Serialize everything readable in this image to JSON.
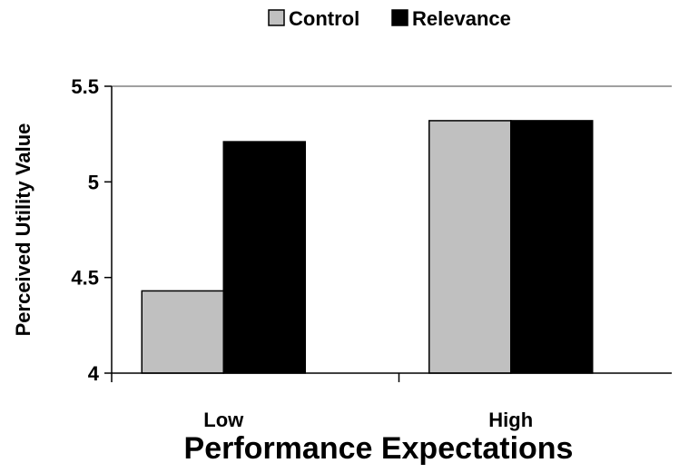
{
  "chart_data": {
    "type": "bar",
    "title": "",
    "xlabel": "Performance Expectations",
    "ylabel": "Perceived Utility Value",
    "categories": [
      "Low",
      "High"
    ],
    "series": [
      {
        "name": "Control",
        "values": [
          4.43,
          5.32
        ],
        "color": "#c0c0c0"
      },
      {
        "name": "Relevance",
        "values": [
          5.21,
          5.32
        ],
        "color": "#000000"
      }
    ],
    "ylim": [
      4,
      5.5
    ],
    "yticks": [
      4,
      4.5,
      5,
      5.5
    ],
    "ytick_labels": [
      "4",
      "4.5",
      "5",
      "5.5"
    ],
    "grid": false,
    "legend_position": "top"
  }
}
